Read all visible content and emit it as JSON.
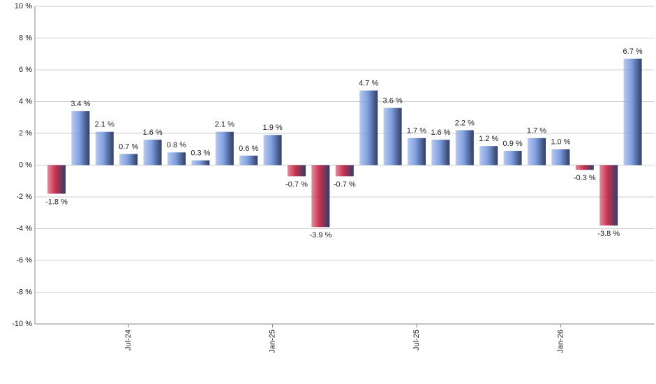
{
  "chart_data": {
    "type": "bar",
    "categories": [
      null,
      null,
      null,
      "Jul-24",
      null,
      null,
      null,
      null,
      null,
      "Jan-25",
      null,
      null,
      null,
      null,
      null,
      "Jul-25",
      null,
      null,
      null,
      null,
      null,
      "Jan-26",
      null,
      null,
      null
    ],
    "values": [
      -1.8,
      3.4,
      2.1,
      0.7,
      1.6,
      0.8,
      0.3,
      2.1,
      0.6,
      1.9,
      -0.7,
      -3.9,
      -0.7,
      4.7,
      3.6,
      1.7,
      1.6,
      2.2,
      1.2,
      0.9,
      1.7,
      1.0,
      -0.3,
      -3.8,
      6.7
    ],
    "value_labels": [
      "-1.8 %",
      "3.4 %",
      "2.1 %",
      "0.7 %",
      "1.6 %",
      "0.8 %",
      "0.3 %",
      "2.1 %",
      "0.6 %",
      "1.9 %",
      "-0.7 %",
      "-3.9 %",
      "-0.7 %",
      "4.7 %",
      "3.6 %",
      "1.7 %",
      "1.6 %",
      "2.2 %",
      "1.2 %",
      "0.9 %",
      "1.7 %",
      "1.0 %",
      "-0.3 %",
      "-3.8 %",
      "6.7 %"
    ],
    "color": "#7f9fe0",
    "negative_color": "#c8304f",
    "ylim": [
      -10,
      10
    ],
    "yticks": [
      {
        "value": -10,
        "label": "-10 %"
      },
      {
        "value": -8,
        "label": "-8 %"
      },
      {
        "value": -6,
        "label": "-6 %"
      },
      {
        "value": -4,
        "label": "-4 %"
      },
      {
        "value": -2,
        "label": "-2 %"
      },
      {
        "value": 0,
        "label": "0 %"
      },
      {
        "value": 2,
        "label": "2 %"
      },
      {
        "value": 4,
        "label": "4 %"
      },
      {
        "value": 6,
        "label": "6 %"
      },
      {
        "value": 8,
        "label": "8 %"
      },
      {
        "value": 10,
        "label": "10 %"
      }
    ],
    "grid": true
  }
}
